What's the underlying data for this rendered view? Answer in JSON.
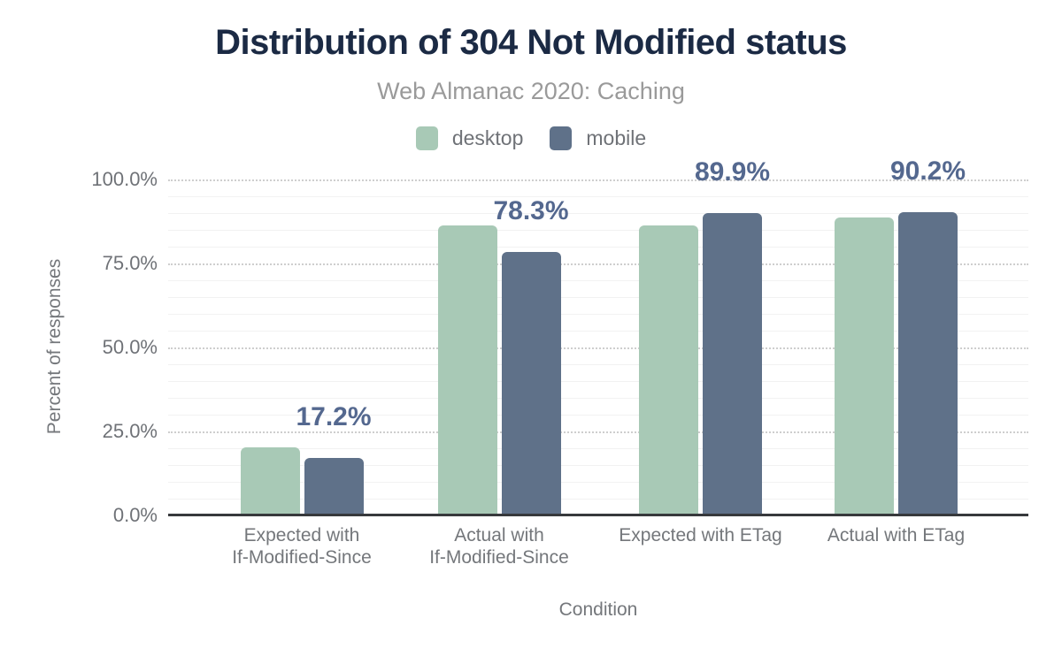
{
  "chart_data": {
    "type": "bar",
    "title": "Distribution of 304 Not Modified status",
    "subtitle": "Web Almanac 2020: Caching",
    "xlabel": "Condition",
    "ylabel": "Percent of responses",
    "categories": [
      "Expected with\nIf-Modified-Since",
      "Actual with\nIf-Modified-Since",
      "Expected with ETag",
      "Actual with ETag"
    ],
    "series": [
      {
        "name": "desktop",
        "color": "#a8c9b6",
        "values": [
          20.2,
          86.2,
          86.2,
          88.6
        ]
      },
      {
        "name": "mobile",
        "color": "#5f7189",
        "values": [
          17.2,
          78.3,
          89.9,
          90.2
        ]
      }
    ],
    "value_labels": {
      "series": "mobile",
      "texts": [
        "17.2%",
        "78.3%",
        "89.9%",
        "90.2%"
      ]
    },
    "y_ticks": [
      "0.0%",
      "25.0%",
      "50.0%",
      "75.0%",
      "100.0%"
    ],
    "y_tick_values": [
      0,
      25,
      50,
      75,
      100
    ],
    "ylim": [
      0,
      100
    ],
    "grid": {
      "minor_step_pct": 5,
      "major_step_pct": 25,
      "major_style": "dotted"
    },
    "legend_position": "top"
  },
  "colors": {
    "title_text": "#1b2a44",
    "subtitle_text": "#9a9a9a",
    "axis_text": "#74777b",
    "value_label_text": "#54688f",
    "axis_line": "#37393c",
    "grid_minor": "#f2f2f2",
    "grid_major": "#cecece",
    "background": "#ffffff"
  }
}
